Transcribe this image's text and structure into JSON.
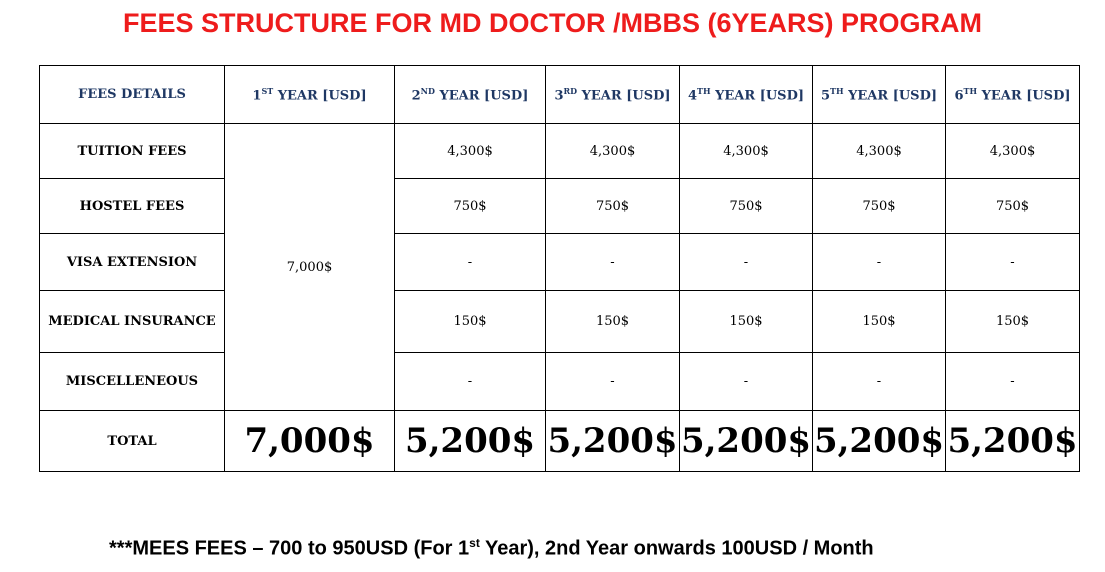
{
  "title": "FEES STRUCTURE FOR MD DOCTOR /MBBS (6YEARS) PROGRAM",
  "table": {
    "header": {
      "details": "FEES DETAILS",
      "years": [
        {
          "num": "1",
          "sup": "ST",
          "rest": " YEAR [USD]"
        },
        {
          "num": "2",
          "sup": "ND",
          "rest": " YEAR [USD]"
        },
        {
          "num": "3",
          "sup": "RD",
          "rest": " YEAR [USD]"
        },
        {
          "num": "4",
          "sup": "TH",
          "rest": " YEAR [USD]"
        },
        {
          "num": "5",
          "sup": "TH",
          "rest": " YEAR [USD]"
        },
        {
          "num": "6",
          "sup": "TH",
          "rest": " YEAR [USD]"
        }
      ]
    },
    "first_year_combined": "7,000$",
    "rows": [
      {
        "label": "TUITION FEES",
        "values": [
          "4,300$",
          "4,300$",
          "4,300$",
          "4,300$",
          "4,300$"
        ]
      },
      {
        "label": "HOSTEL FEES",
        "values": [
          "750$",
          "750$",
          "750$",
          "750$",
          "750$"
        ]
      },
      {
        "label": "VISA EXTENSION",
        "values": [
          "-",
          "-",
          "-",
          "-",
          "-"
        ]
      },
      {
        "label": "MEDICAL INSURANCE",
        "values": [
          "150$",
          "150$",
          "150$",
          "150$",
          "150$"
        ]
      },
      {
        "label": "MISCELLENEOUS",
        "values": [
          "-",
          "-",
          "-",
          "-",
          "-"
        ]
      }
    ],
    "total": {
      "label": "TOTAL",
      "values": [
        "7,000$",
        "5,200$",
        "5,200$",
        "5,200$",
        "5,200$",
        "5,200$"
      ]
    }
  },
  "footnote": {
    "part1": "***MEES FEES – 700 to 950USD (For 1",
    "sup": "st",
    "part2": " Year), 2nd Year onwards 100USD / Month"
  }
}
